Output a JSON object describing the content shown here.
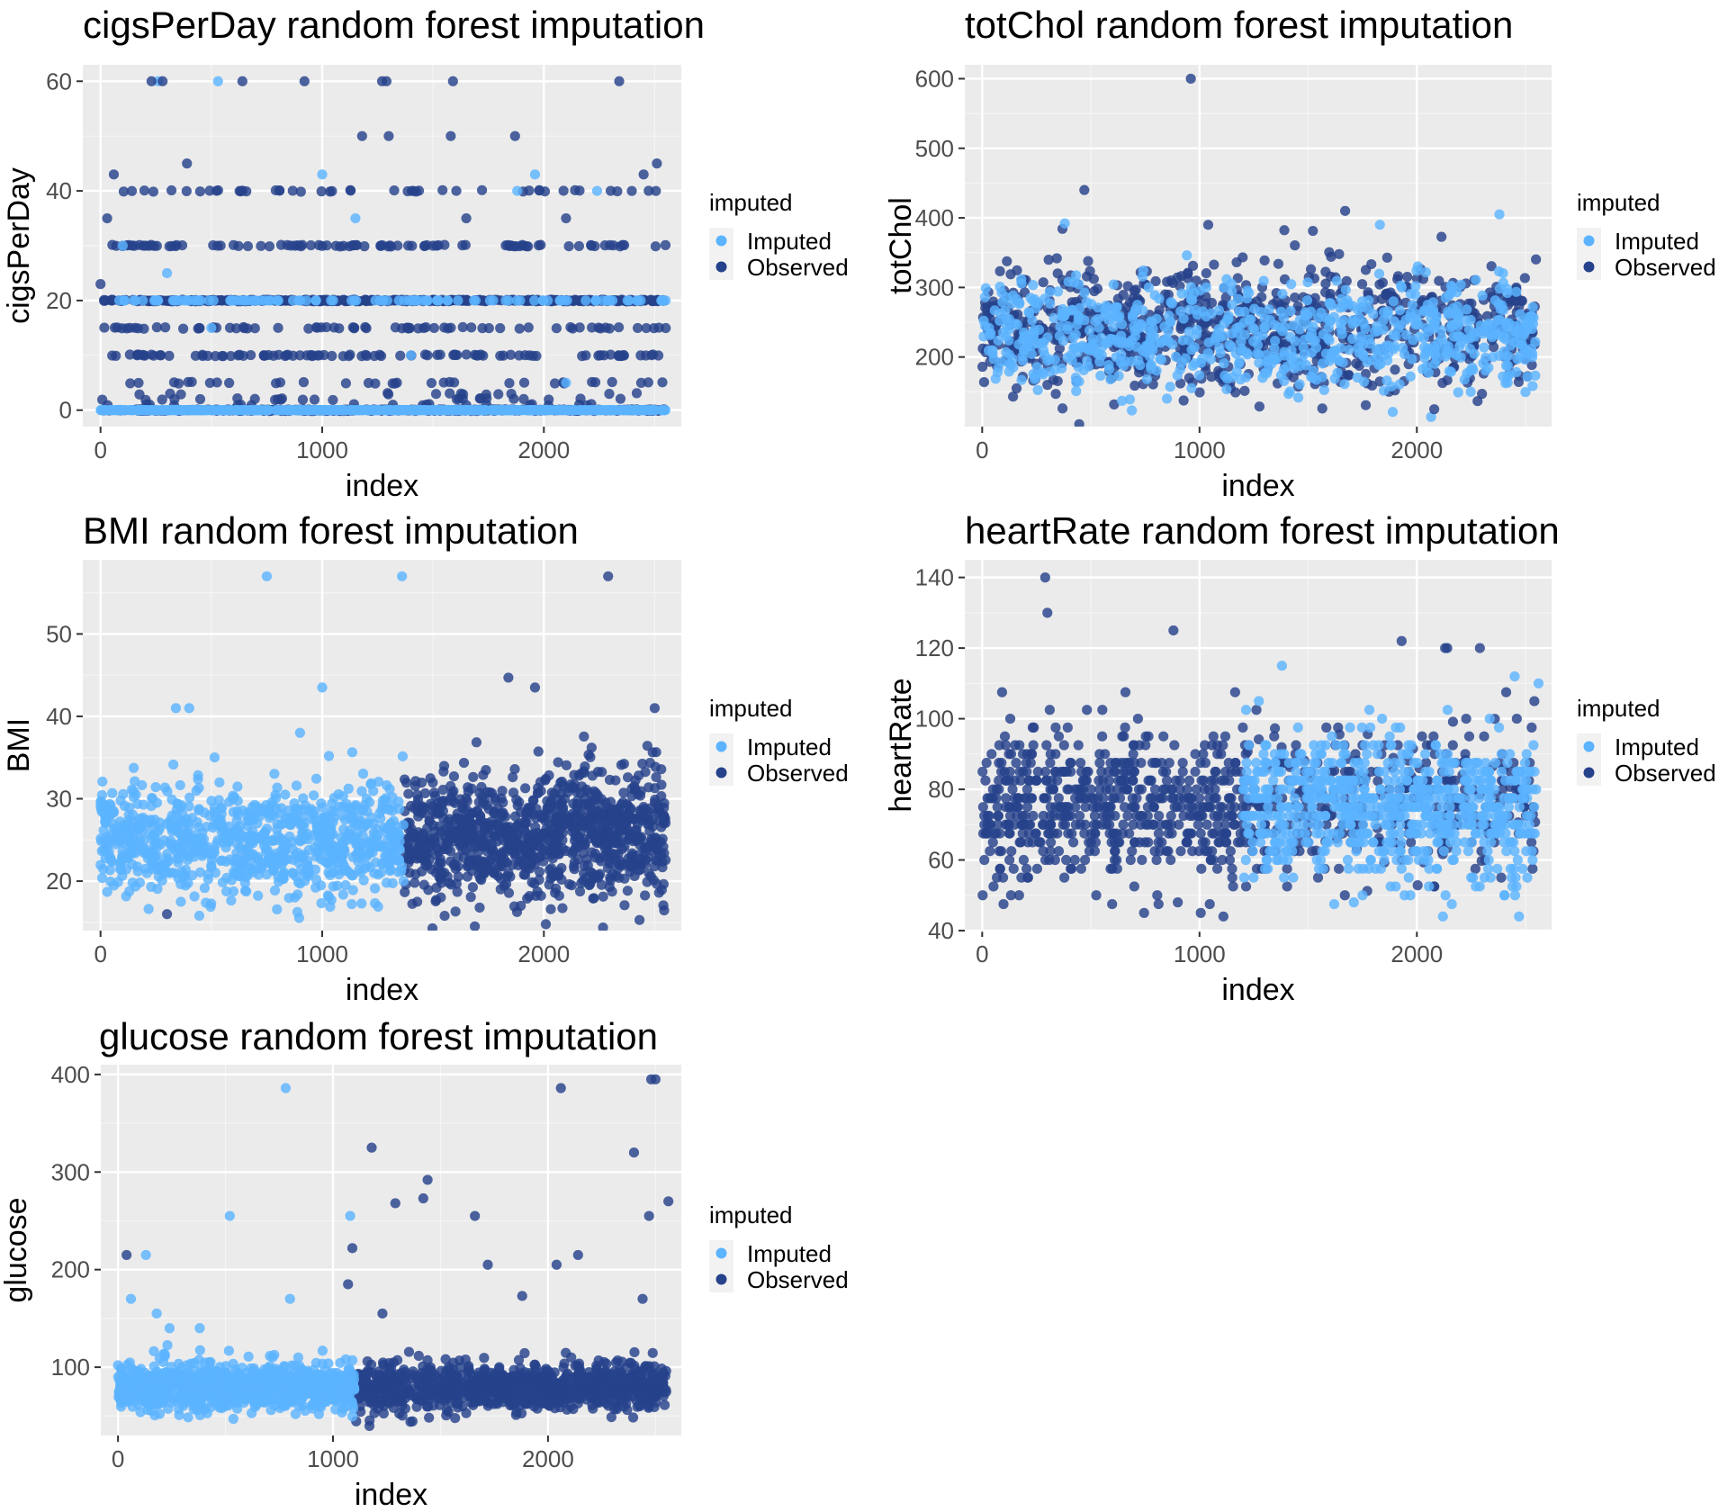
{
  "legend": {
    "title": "imputed",
    "items": [
      {
        "label": "Imputed",
        "color": "#5cb3ff"
      },
      {
        "label": "Observed",
        "color": "#26428b"
      }
    ]
  },
  "chart_data": [
    {
      "type": "scatter",
      "title": "cigsPerDay random forest imputation",
      "xlabel": "index",
      "ylabel": "cigsPerDay",
      "xlim": [
        -80,
        2620
      ],
      "ylim": [
        -3,
        63
      ],
      "xticks": [
        0,
        1000,
        2000
      ],
      "yticks": [
        0,
        20,
        40,
        60
      ],
      "grid": true,
      "legend_position": "right",
      "x_range": [
        0,
        2550
      ],
      "imputed_levels": [
        0,
        20
      ],
      "observed_levels": [
        0,
        1,
        2,
        3,
        5,
        10,
        15,
        20,
        30,
        40
      ],
      "series": [
        {
          "name": "Imputed",
          "points": [
            [
              260,
              60
            ],
            [
              530,
              60
            ],
            [
              1150,
              35
            ],
            [
              2240,
              40
            ],
            [
              1880,
              40
            ],
            [
              300,
              25
            ],
            [
              100,
              30
            ],
            [
              1000,
              43
            ],
            [
              1960,
              43
            ],
            [
              500,
              15
            ],
            [
              1400,
              10
            ],
            [
              2100,
              5
            ]
          ]
        },
        {
          "name": "Observed",
          "points": [
            [
              230,
              60
            ],
            [
              280,
              60
            ],
            [
              640,
              60
            ],
            [
              920,
              60
            ],
            [
              1270,
              60
            ],
            [
              1290,
              60
            ],
            [
              1590,
              60
            ],
            [
              2340,
              60
            ],
            [
              1180,
              50
            ],
            [
              1300,
              50
            ],
            [
              1580,
              50
            ],
            [
              1870,
              50
            ],
            [
              390,
              45
            ],
            [
              2510,
              45
            ],
            [
              60,
              43
            ],
            [
              2450,
              43
            ],
            [
              0,
              23
            ],
            [
              30,
              35
            ],
            [
              2100,
              35
            ],
            [
              1650,
              35
            ]
          ]
        }
      ]
    },
    {
      "type": "scatter",
      "title": "totChol random forest imputation",
      "xlabel": "index",
      "ylabel": "totChol",
      "xlim": [
        -80,
        2620
      ],
      "ylim": [
        100,
        620
      ],
      "xticks": [
        0,
        1000,
        2000
      ],
      "yticks": [
        200,
        300,
        400,
        500,
        600
      ],
      "grid": true,
      "legend_position": "right",
      "x_range": [
        0,
        2550
      ],
      "imputed_center": 230,
      "imputed_spread": 40,
      "observed_center": 240,
      "observed_spread": 45,
      "series": [
        {
          "name": "Imputed",
          "points": [
            [
              380,
              392
            ],
            [
              2380,
              405
            ],
            [
              1830,
              390
            ]
          ]
        },
        {
          "name": "Observed",
          "points": [
            [
              960,
              600
            ],
            [
              470,
              440
            ],
            [
              1670,
              410
            ],
            [
              2080,
              125
            ],
            [
              1040,
              390
            ],
            [
              300,
              160
            ]
          ]
        }
      ]
    },
    {
      "type": "scatter",
      "title": "BMI random forest imputation",
      "xlabel": "index",
      "ylabel": "BMI",
      "xlim": [
        -80,
        2620
      ],
      "ylim": [
        14,
        59
      ],
      "xticks": [
        0,
        1000,
        2000
      ],
      "yticks": [
        20,
        30,
        40,
        50
      ],
      "grid": true,
      "legend_position": "right",
      "x_range": [
        0,
        2550
      ],
      "split_index": 1370,
      "imputed_center": 25,
      "imputed_spread": 3.5,
      "observed_center": 25.5,
      "observed_spread": 3.8,
      "series": [
        {
          "name": "Imputed",
          "points": [
            [
              750,
              57
            ],
            [
              1360,
              57
            ],
            [
              1000,
              43.5
            ],
            [
              340,
              41
            ],
            [
              400,
              41
            ],
            [
              900,
              38
            ]
          ]
        },
        {
          "name": "Observed",
          "points": [
            [
              2290,
              57
            ],
            [
              1840,
              44.7
            ],
            [
              1960,
              43.5
            ],
            [
              2500,
              41
            ],
            [
              300,
              16
            ]
          ]
        }
      ]
    },
    {
      "type": "scatter",
      "title": "heartRate random forest imputation",
      "xlabel": "index",
      "ylabel": "heartRate",
      "xlim": [
        -80,
        2620
      ],
      "ylim": [
        40,
        145
      ],
      "xticks": [
        0,
        1000,
        2000
      ],
      "yticks": [
        40,
        60,
        80,
        100,
        120,
        140
      ],
      "grid": true,
      "legend_position": "right",
      "x_range": [
        0,
        2550
      ],
      "split_index": 1200,
      "imputed_center": 75,
      "imputed_spread": 10,
      "observed_center": 76,
      "observed_spread": 11,
      "series": [
        {
          "name": "Imputed",
          "points": [
            [
              2450,
              112
            ],
            [
              2560,
              110
            ],
            [
              2120,
              44
            ],
            [
              2470,
              44
            ],
            [
              1710,
              48
            ]
          ]
        },
        {
          "name": "Observed",
          "points": [
            [
              290,
              140
            ],
            [
              300,
              130
            ],
            [
              880,
              125
            ],
            [
              1930,
              122
            ],
            [
              2130,
              120
            ],
            [
              2140,
              120
            ],
            [
              2290,
              120
            ],
            [
              1110,
              44
            ],
            [
              900,
              48
            ]
          ]
        }
      ]
    },
    {
      "type": "scatter",
      "title": "glucose random forest imputation",
      "xlabel": "index",
      "ylabel": "glucose",
      "xlim": [
        -80,
        2620
      ],
      "ylim": [
        30,
        410
      ],
      "xticks": [
        0,
        1000,
        2000
      ],
      "yticks": [
        100,
        200,
        300,
        400
      ],
      "grid": true,
      "legend_position": "right",
      "x_range": [
        0,
        2550
      ],
      "split_index": 1100,
      "imputed_center": 80,
      "imputed_spread": 12,
      "observed_center": 80,
      "observed_spread": 12,
      "series": [
        {
          "name": "Imputed",
          "points": [
            [
              780,
              386
            ],
            [
              520,
              255
            ],
            [
              1080,
              255
            ],
            [
              130,
              215
            ],
            [
              60,
              170
            ],
            [
              180,
              155
            ],
            [
              240,
              140
            ],
            [
              380,
              140
            ],
            [
              800,
              170
            ]
          ]
        },
        {
          "name": "Observed",
          "points": [
            [
              2480,
              395
            ],
            [
              2500,
              395
            ],
            [
              2060,
              386
            ],
            [
              2400,
              320
            ],
            [
              1180,
              325
            ],
            [
              1440,
              292
            ],
            [
              1420,
              273
            ],
            [
              1290,
              268
            ],
            [
              2560,
              270
            ],
            [
              1660,
              255
            ],
            [
              2470,
              255
            ],
            [
              1090,
              222
            ],
            [
              1070,
              185
            ],
            [
              40,
              215
            ],
            [
              2140,
              215
            ],
            [
              2040,
              205
            ],
            [
              1720,
              205
            ],
            [
              1880,
              173
            ],
            [
              2440,
              170
            ],
            [
              1230,
              155
            ]
          ]
        }
      ]
    }
  ]
}
